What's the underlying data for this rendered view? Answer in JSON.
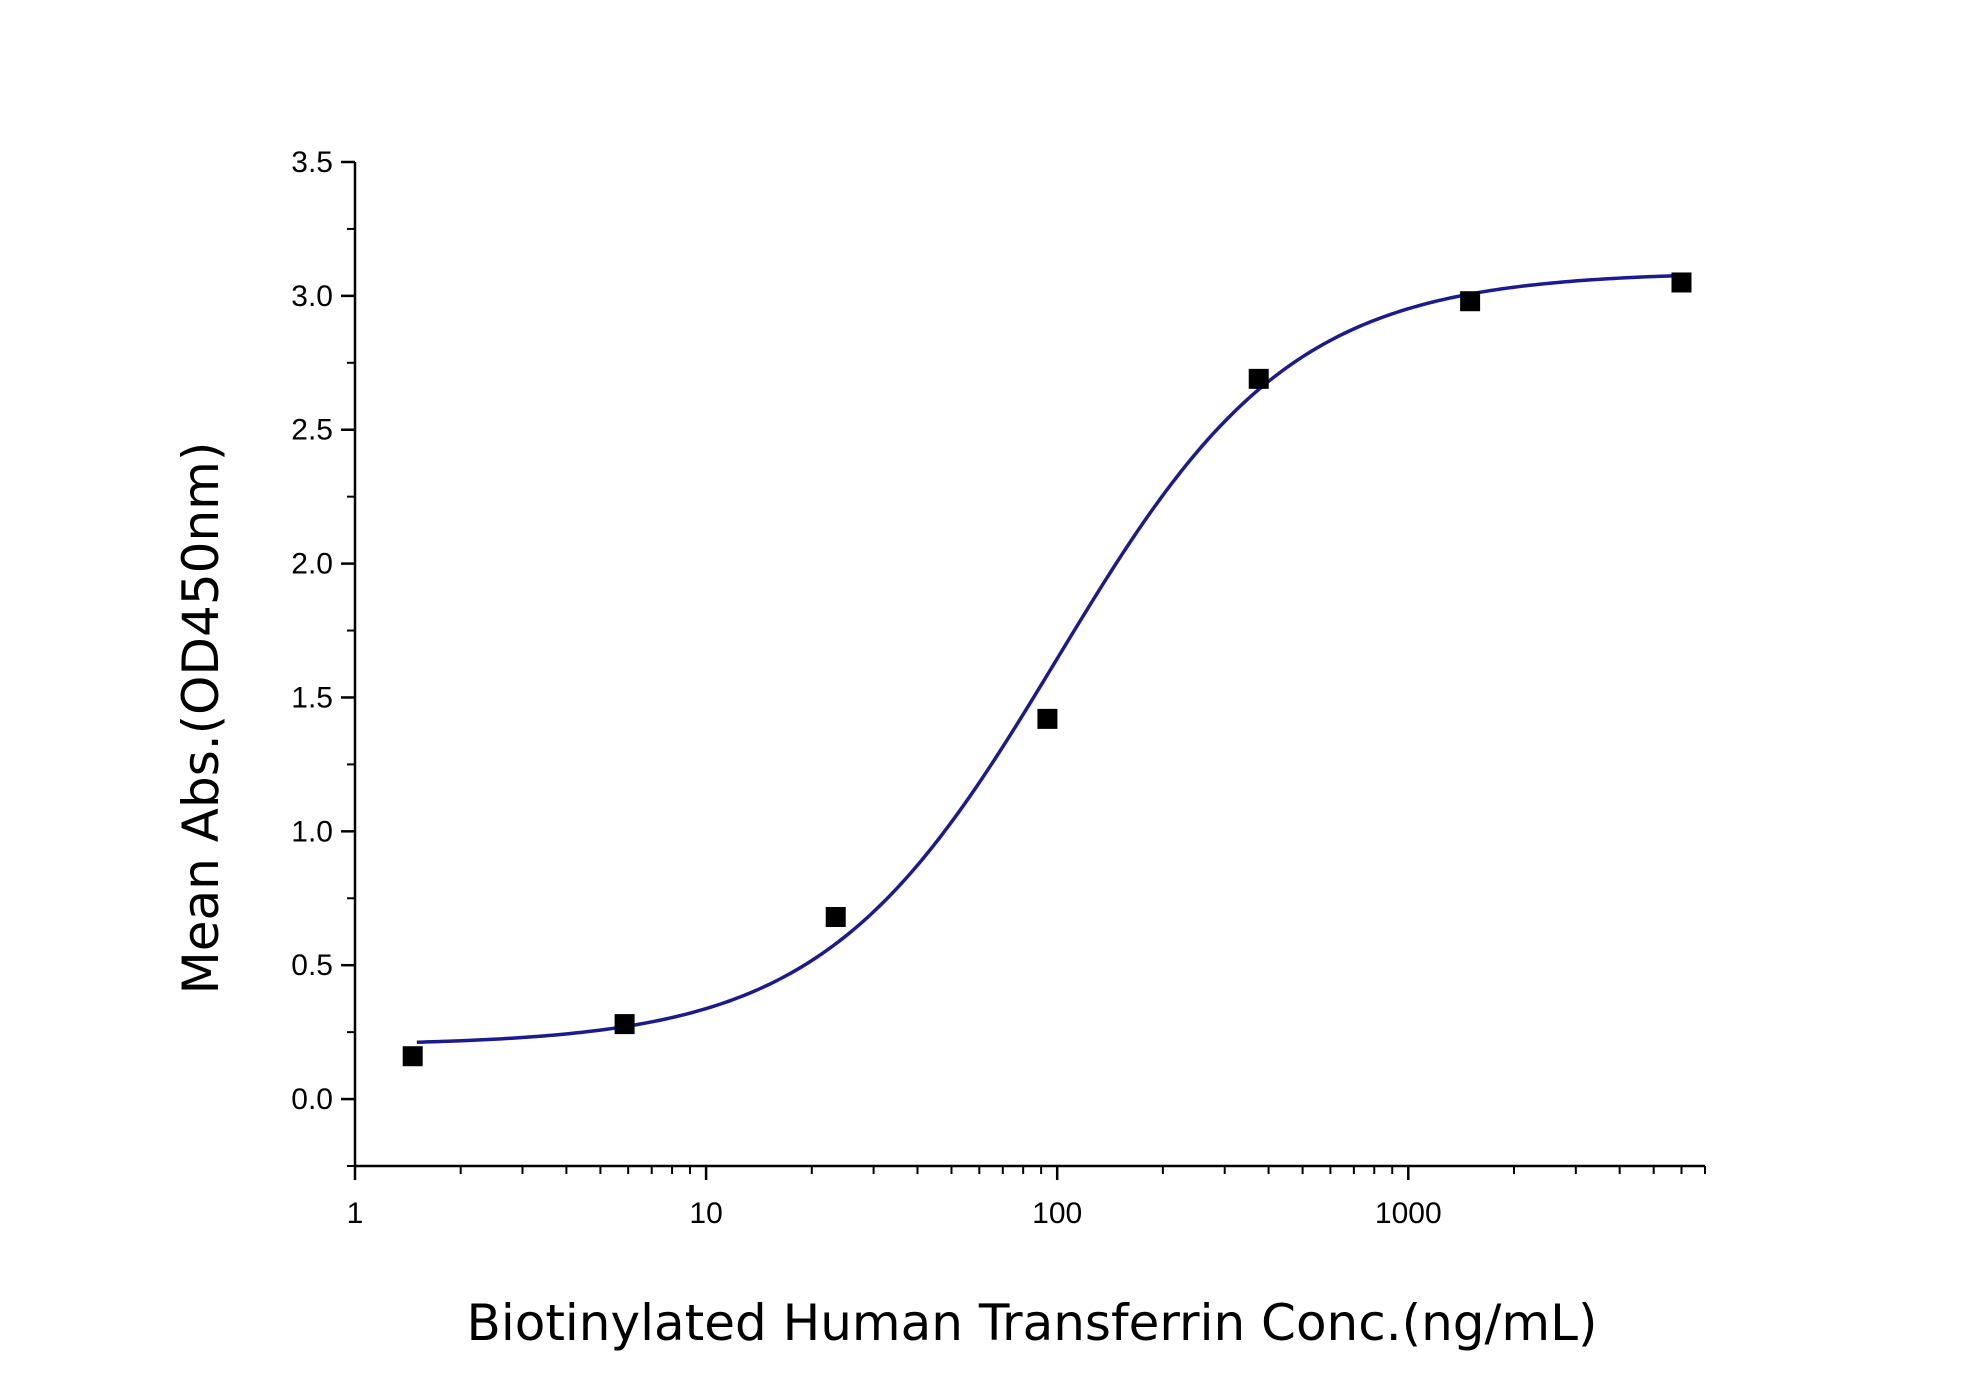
{
  "chart_data": {
    "type": "scatter",
    "xlabel": "Biotinylated Human Transferrin Conc.(ng/mL)",
    "ylabel": "Mean Abs.(OD450nm)",
    "x_scale": "log",
    "xlim": [
      1,
      7000
    ],
    "ylim": [
      -0.25,
      3.5
    ],
    "x_ticks": [
      1,
      10,
      100,
      1000
    ],
    "x_tick_labels": [
      "1",
      "10",
      "100",
      "1000"
    ],
    "y_ticks": [
      0,
      0.5,
      1.0,
      1.5,
      2.0,
      2.5,
      3.0,
      3.5
    ],
    "y_tick_labels": [
      "0.0",
      "0.5",
      "1.0",
      "1.5",
      "2.0",
      "2.5",
      "3.0",
      "3.5"
    ],
    "grid": false,
    "legend": "none",
    "points": [
      {
        "x": 1.46,
        "y": 0.16
      },
      {
        "x": 5.86,
        "y": 0.28
      },
      {
        "x": 23.4,
        "y": 0.68
      },
      {
        "x": 93.8,
        "y": 1.42
      },
      {
        "x": 375,
        "y": 2.69
      },
      {
        "x": 1500,
        "y": 2.98
      },
      {
        "x": 6000,
        "y": 3.05
      }
    ],
    "fit_curve": {
      "model": "4-parameter logistic",
      "bottom": 0.2,
      "top": 3.09,
      "ec50": 100,
      "hill": 1.3,
      "x_range": [
        1.5,
        6000
      ]
    },
    "colors": {
      "points": "#000000",
      "curve": "#1b1b8f",
      "axis": "#000000"
    }
  }
}
